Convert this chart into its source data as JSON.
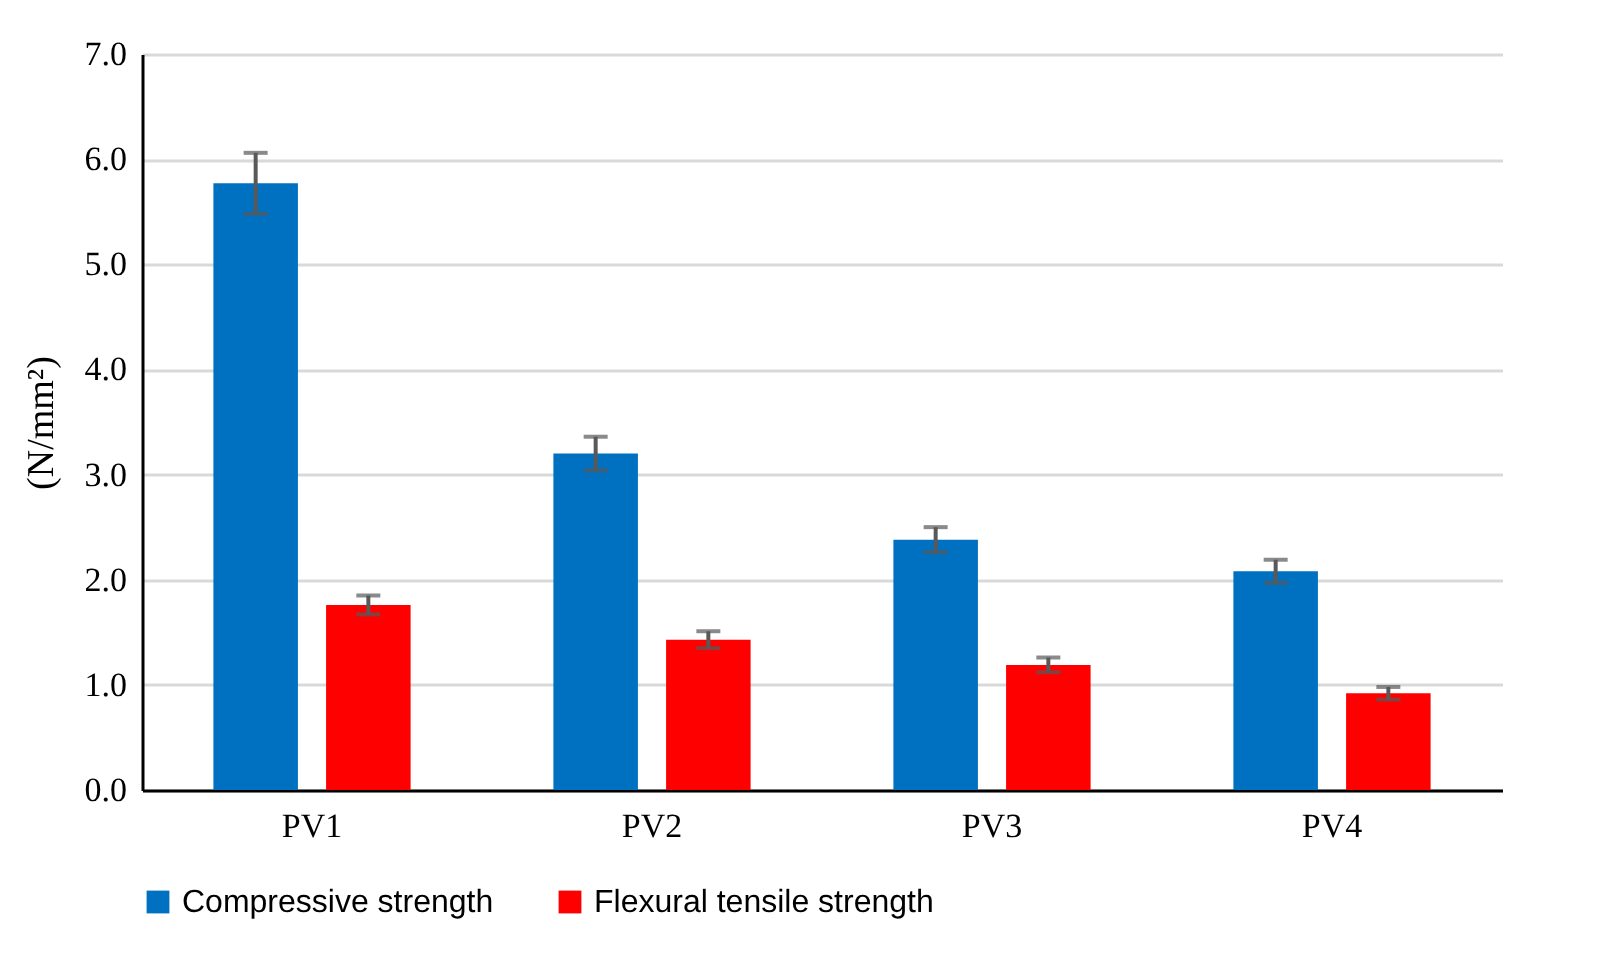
{
  "chart_data": {
    "type": "bar",
    "ylabel": "(N/mm²)",
    "categories": [
      "PV1",
      "PV2",
      "PV3",
      "PV4"
    ],
    "series": [
      {
        "name": "Compressive strength",
        "color": "#0070c0",
        "values": [
          5.77,
          3.2,
          2.38,
          2.08
        ],
        "errors": [
          0.29,
          0.16,
          0.12,
          0.11
        ]
      },
      {
        "name": "Flexural tensile strength",
        "color": "#ff0000",
        "values": [
          1.76,
          1.43,
          1.19,
          0.92
        ],
        "errors": [
          0.09,
          0.08,
          0.07,
          0.06
        ]
      }
    ],
    "ylim": [
      0,
      7
    ],
    "yticks": [
      {
        "value": 0,
        "label": "0.0"
      },
      {
        "value": 1,
        "label": "1.0"
      },
      {
        "value": 2,
        "label": "2.0"
      },
      {
        "value": 3,
        "label": "3.0"
      },
      {
        "value": 4,
        "label": "4.0"
      },
      {
        "value": 5,
        "label": "5.0"
      },
      {
        "value": 6,
        "label": "6.0"
      },
      {
        "value": 7,
        "label": "7.0"
      }
    ],
    "grid": "y",
    "legend": "bottom"
  }
}
